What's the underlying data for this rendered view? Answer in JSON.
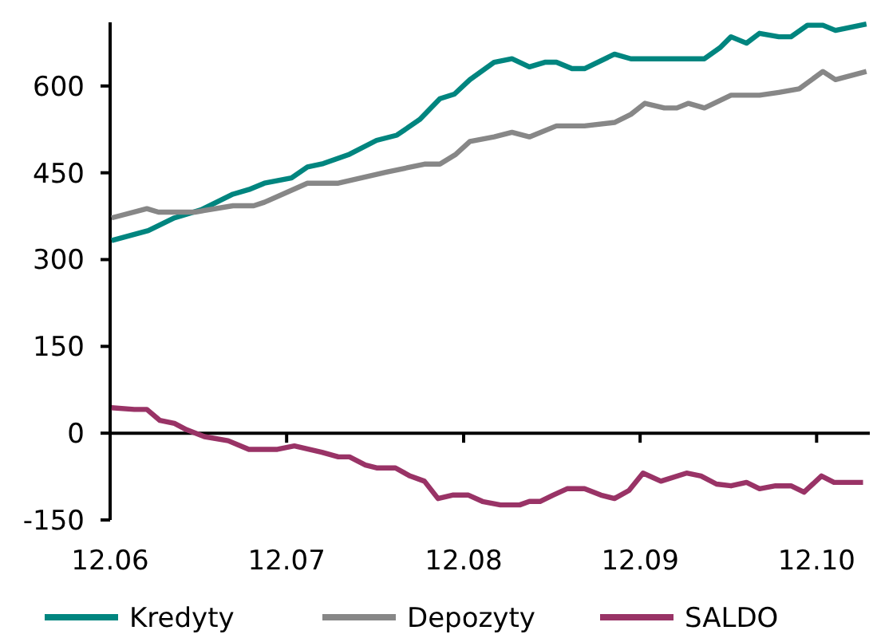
{
  "chart_data": {
    "type": "line",
    "xlim": [
      "2006-12-01",
      "2011-03-21"
    ],
    "xticks": [
      {
        "value": "2006-12-01",
        "label": "12.06"
      },
      {
        "value": "2007-12-01",
        "label": "12.07"
      },
      {
        "value": "2008-12-01",
        "label": "12.08"
      },
      {
        "value": "2009-12-01",
        "label": "12.09"
      },
      {
        "value": "2010-12-01",
        "label": "12.10"
      }
    ],
    "ylim": [
      -150,
      710
    ],
    "yticks": [
      -150,
      0,
      150,
      300,
      450,
      600
    ],
    "grid": false,
    "ref_lines": [
      {
        "axis": "y",
        "value": 0
      }
    ],
    "legend": "bottom",
    "marker": "none",
    "line_style": "solid",
    "series": [
      {
        "name": "Kredyty",
        "color": "#00857f",
        "x": [
          "2006-12-04",
          "2007-02-18",
          "2007-04-13",
          "2007-06-07",
          "2007-08-12",
          "2007-09-14",
          "2007-10-16",
          "2007-12-11",
          "2008-01-13",
          "2008-02-15",
          "2008-04-09",
          "2008-06-04",
          "2008-07-16",
          "2008-09-01",
          "2008-10-13",
          "2008-11-12",
          "2008-12-14",
          "2009-02-02",
          "2009-03-11",
          "2009-04-16",
          "2009-05-18",
          "2009-06-11",
          "2009-07-13",
          "2009-08-08",
          "2009-10-09",
          "2009-11-12",
          "2010-04-13",
          "2010-05-15",
          "2010-06-07",
          "2010-07-09",
          "2010-08-05",
          "2010-09-14",
          "2010-10-09",
          "2010-11-12",
          "2010-12-14",
          "2011-01-09",
          "2011-03-14"
        ],
        "values": [
          333,
          350,
          372,
          386,
          413,
          421,
          432,
          441,
          460,
          466,
          482,
          506,
          515,
          542,
          578,
          586,
          611,
          641,
          647,
          633,
          641,
          641,
          630,
          630,
          655,
          647,
          647,
          666,
          685,
          674,
          691,
          685,
          685,
          705,
          705,
          696,
          707
        ]
      },
      {
        "name": "Depozyty",
        "color": "#878787",
        "x": [
          "2006-12-04",
          "2007-02-15",
          "2007-03-11",
          "2007-05-25",
          "2007-08-12",
          "2007-09-24",
          "2007-10-16",
          "2008-01-13",
          "2008-03-17",
          "2008-06-24",
          "2008-09-11",
          "2008-10-13",
          "2008-11-15",
          "2008-12-14",
          "2009-02-02",
          "2009-03-11",
          "2009-04-16",
          "2009-06-11",
          "2009-08-08",
          "2009-10-09",
          "2009-11-12",
          "2009-12-11",
          "2010-01-20",
          "2010-02-15",
          "2010-03-11",
          "2010-04-13",
          "2010-06-07",
          "2010-08-05",
          "2010-09-14",
          "2010-10-26",
          "2010-12-14",
          "2011-01-09",
          "2011-03-14"
        ],
        "values": [
          372,
          388,
          382,
          382,
          393,
          393,
          399,
          432,
          432,
          451,
          465,
          465,
          482,
          504,
          512,
          520,
          512,
          531,
          531,
          537,
          551,
          570,
          562,
          562,
          570,
          562,
          584,
          584,
          589,
          595,
          625,
          611,
          625
        ]
      },
      {
        "name": "SALDO",
        "color": "#993366",
        "x": [
          "2006-12-04",
          "2007-01-20",
          "2007-02-15",
          "2007-03-14",
          "2007-04-13",
          "2007-05-08",
          "2007-06-14",
          "2007-08-02",
          "2007-09-14",
          "2007-11-12",
          "2007-12-17",
          "2008-02-12",
          "2008-03-17",
          "2008-04-09",
          "2008-05-12",
          "2008-06-04",
          "2008-07-13",
          "2008-08-12",
          "2008-09-11",
          "2008-10-09",
          "2008-11-08",
          "2008-12-11",
          "2009-01-09",
          "2009-02-15",
          "2009-03-27",
          "2009-04-16",
          "2009-05-08",
          "2009-06-04",
          "2009-07-03",
          "2009-08-08",
          "2009-09-11",
          "2009-10-09",
          "2009-11-08",
          "2009-12-07",
          "2010-01-13",
          "2010-03-07",
          "2010-04-06",
          "2010-05-08",
          "2010-06-07",
          "2010-07-09",
          "2010-08-05",
          "2010-09-07",
          "2010-10-09",
          "2010-11-05",
          "2010-12-11",
          "2011-01-06",
          "2011-03-07"
        ],
        "values": [
          44,
          41,
          41,
          22,
          17,
          6,
          -6,
          -13,
          -28,
          -28,
          -22,
          -33,
          -41,
          -41,
          -55,
          -60,
          -60,
          -74,
          -83,
          -113,
          -107,
          -107,
          -118,
          -124,
          -124,
          -118,
          -118,
          -107,
          -96,
          -96,
          -107,
          -113,
          -99,
          -69,
          -83,
          -69,
          -74,
          -88,
          -91,
          -85,
          -96,
          -91,
          -91,
          -102,
          -74,
          -85,
          -85
        ]
      }
    ]
  }
}
